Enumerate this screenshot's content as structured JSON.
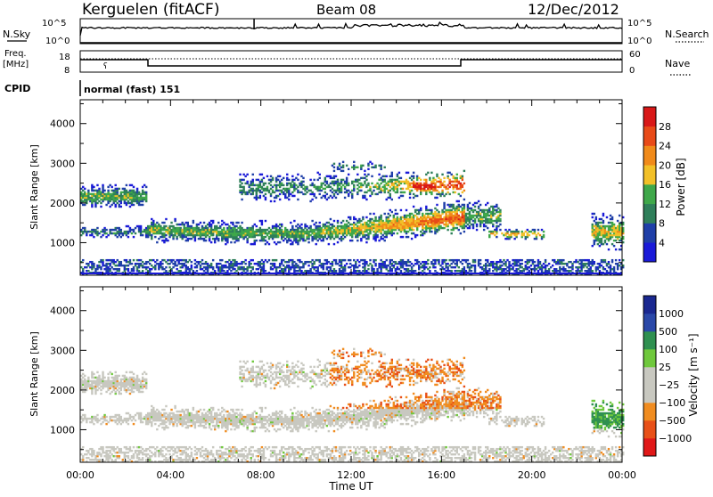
{
  "header": {
    "station": "Kerguelen (fitACF)",
    "beam": "Beam 08",
    "date": "12/Dec/2012"
  },
  "top_panels": {
    "nsky_label": "N.Sky",
    "nsky_ticks": [
      "10^5",
      "10^0"
    ],
    "nsearch_label": "N.Search",
    "nsearch_ticks": [
      "10^5",
      "10^0"
    ],
    "freq_label_1": "Freq.",
    "freq_label_2": "[MHz]",
    "freq_ticks": [
      "18",
      "8"
    ],
    "nave_label": "Nave",
    "nave_ticks": [
      "60",
      "0"
    ],
    "cpid_label": "CPID",
    "cpid_value": "normal (fast) 151"
  },
  "colors": {
    "power_scale": [
      "#1a1ad8",
      "#1f3fa8",
      "#2f7f5a",
      "#3fa84a",
      "#f2c028",
      "#f08a1a",
      "#e84a18",
      "#d81818"
    ],
    "velocity_scale": [
      "#e01818",
      "#e85018",
      "#f08c20",
      "#c8c8c0",
      "#c8c8c0",
      "#6fc83c",
      "#2f9050",
      "#2a48a8",
      "#1a2890"
    ]
  },
  "chart_data": [
    {
      "type": "heatmap",
      "panel": "power",
      "ylabel": "Slant Range [km]",
      "xlabel": "Time UT",
      "x_ticks": [
        "00:00",
        "04:00",
        "08:00",
        "12:00",
        "16:00",
        "20:00",
        "00:00"
      ],
      "y_ticks": [
        "1000",
        "2000",
        "3000",
        "4000"
      ],
      "xlim_hours": [
        0,
        24
      ],
      "ylim_km": [
        180,
        4600
      ],
      "colorbar_label": "Power [dB]",
      "colorbar_ticks": [
        "4",
        "8",
        "12",
        "16",
        "20",
        "24",
        "28"
      ],
      "colorbar_range": [
        0,
        32
      ]
    },
    {
      "type": "heatmap",
      "panel": "velocity",
      "ylabel": "Slant Range [km]",
      "xlabel": "Time UT",
      "x_ticks": [
        "00:00",
        "04:00",
        "08:00",
        "12:00",
        "16:00",
        "20:00",
        "00:00"
      ],
      "y_ticks": [
        "1000",
        "2000",
        "3000",
        "4000"
      ],
      "xlim_hours": [
        0,
        24
      ],
      "ylim_km": [
        180,
        4600
      ],
      "colorbar_label": "Velocity [m s⁻¹]",
      "colorbar_ticks": [
        "1000",
        "500",
        "100",
        "25",
        "−25",
        "−100",
        "−500",
        "−1000"
      ]
    }
  ]
}
